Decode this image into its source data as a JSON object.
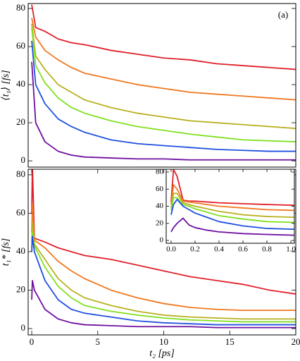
{
  "chart_data": [
    {
      "type": "line",
      "ylabel": "⟨t₁⟩ [fs]",
      "annotation": "(a)",
      "x": [
        0,
        0.3,
        1,
        2,
        3,
        4,
        6,
        8,
        10,
        12,
        14,
        16,
        18,
        20
      ],
      "xlim": [
        -0.27,
        20
      ],
      "ylim": [
        -3.3,
        82.6
      ],
      "yticks": [
        0,
        20,
        40,
        60,
        80
      ],
      "series": [
        {
          "color": "#e0202a",
          "values": [
            82,
            70,
            68,
            64,
            62,
            61,
            58,
            56,
            54,
            53,
            51,
            50,
            49,
            48
          ]
        },
        {
          "color": "#f07820",
          "values": [
            75,
            65,
            58,
            53,
            49,
            46,
            43,
            40,
            38,
            36,
            35,
            34,
            33,
            32
          ]
        },
        {
          "color": "#b8b020",
          "values": [
            72,
            55,
            48,
            40,
            36,
            32,
            28,
            25,
            23,
            21,
            20,
            19,
            18,
            17
          ]
        },
        {
          "color": "#80e020",
          "values": [
            70,
            50,
            41,
            33,
            28,
            25,
            21,
            18,
            16,
            14,
            12.5,
            11,
            10.5,
            10
          ]
        },
        {
          "color": "#2050e0",
          "values": [
            63,
            40,
            30,
            22,
            18,
            15,
            11,
            9,
            8,
            7,
            6,
            5.5,
            5,
            5
          ]
        },
        {
          "color": "#7010a0",
          "values": [
            52,
            20,
            10,
            5,
            3,
            2,
            1.5,
            1,
            1,
            0.5,
            0.5,
            0.5,
            0.5,
            0.5
          ]
        }
      ]
    },
    {
      "type": "line",
      "ylabel": "t₁* [fs]",
      "xlabel": "t₂ [ps]",
      "annotation": "(b)",
      "x": [
        0,
        0.05,
        0.2,
        1,
        2,
        3,
        4,
        6,
        8,
        10,
        12,
        14,
        16,
        18,
        20
      ],
      "xlim": [
        -0.27,
        20
      ],
      "ylim": [
        -3.3,
        82.9
      ],
      "xticks": [
        0,
        5,
        10,
        15,
        20
      ],
      "yticks": [
        0,
        20,
        40,
        60,
        80
      ],
      "series": [
        {
          "color": "#e0202a",
          "values": [
            60,
            85,
            47,
            45,
            42,
            40,
            38,
            36,
            33,
            30,
            27,
            25,
            23,
            20,
            18
          ]
        },
        {
          "color": "#f07820",
          "values": [
            50,
            65,
            46,
            42,
            35,
            30,
            26,
            20,
            16,
            13,
            11,
            10,
            9.5,
            9.5,
            9.5
          ]
        },
        {
          "color": "#b8b020",
          "values": [
            45,
            55,
            44,
            36,
            26,
            20,
            16,
            12,
            9,
            7,
            6,
            5.5,
            5,
            5,
            5
          ]
        },
        {
          "color": "#80e020",
          "values": [
            42,
            50,
            43,
            32,
            22,
            16,
            12,
            9,
            7,
            5.5,
            4.5,
            4,
            3.5,
            3.5,
            3.5
          ]
        },
        {
          "color": "#2050e0",
          "values": [
            40,
            48,
            40,
            25,
            15,
            10,
            8,
            6,
            4,
            3,
            2.5,
            2,
            2,
            2,
            2
          ]
        },
        {
          "color": "#7010a0",
          "values": [
            15,
            25,
            20,
            10,
            5,
            3,
            2,
            1.5,
            1,
            1,
            1,
            0.5,
            0.5,
            0.5,
            0.5
          ]
        }
      ]
    },
    {
      "type": "line",
      "x": [
        0,
        0.02,
        0.05,
        0.1,
        0.15,
        0.2,
        0.3,
        0.4,
        0.6,
        0.8,
        1.05
      ],
      "xlim": [
        -0.041,
        1.029
      ],
      "ylim": [
        -3.3,
        83.3
      ],
      "xticks": [
        {
          "value": 0,
          "label": "0.0"
        },
        {
          "value": 0.2,
          "label": "0.2"
        },
        {
          "value": 0.4,
          "label": "0.4"
        },
        {
          "value": 0.6,
          "label": "0.6"
        },
        {
          "value": 0.8,
          "label": "0.8"
        },
        {
          "value": 1,
          "label": "1.0"
        }
      ],
      "yticks": [
        0,
        20,
        40,
        60,
        80
      ],
      "series": [
        {
          "color": "#e0202a",
          "values": [
            45,
            83,
            75,
            47,
            46,
            46,
            45,
            44,
            43,
            42,
            41
          ]
        },
        {
          "color": "#f07820",
          "values": [
            42,
            65,
            60,
            46,
            45,
            44,
            42,
            40,
            38,
            36,
            35
          ]
        },
        {
          "color": "#b8b020",
          "values": [
            38,
            55,
            55,
            44,
            42,
            40,
            37,
            34,
            30,
            28,
            27
          ]
        },
        {
          "color": "#80e020",
          "values": [
            35,
            50,
            50,
            42,
            40,
            37,
            33,
            29,
            25,
            22,
            21
          ]
        },
        {
          "color": "#2050e0",
          "values": [
            30,
            42,
            48,
            40,
            36,
            32,
            27,
            22,
            17,
            14,
            13
          ]
        },
        {
          "color": "#7010a0",
          "values": [
            10,
            15,
            20,
            26,
            18,
            15,
            12,
            10,
            8,
            7,
            6
          ]
        }
      ]
    }
  ]
}
